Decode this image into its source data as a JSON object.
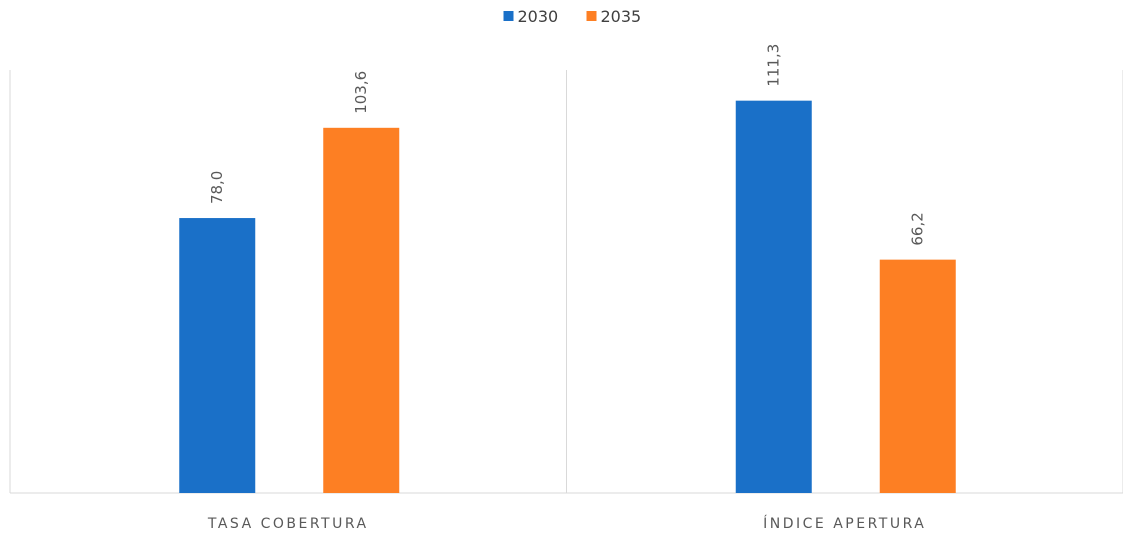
{
  "chart_data": {
    "type": "bar",
    "categories": [
      "TASA COBERTURA",
      "ÍNDICE APERTURA"
    ],
    "series": [
      {
        "name": "2030",
        "color": "#1a70c8",
        "values": [
          78.0,
          111.3
        ],
        "value_labels": [
          "78,0",
          "111,3"
        ]
      },
      {
        "name": "2035",
        "color": "#fd7f23",
        "values": [
          103.6,
          66.2
        ],
        "value_labels": [
          "103,6",
          "66,2"
        ]
      }
    ],
    "ylim": [
      0,
      120
    ],
    "legend": "top"
  }
}
